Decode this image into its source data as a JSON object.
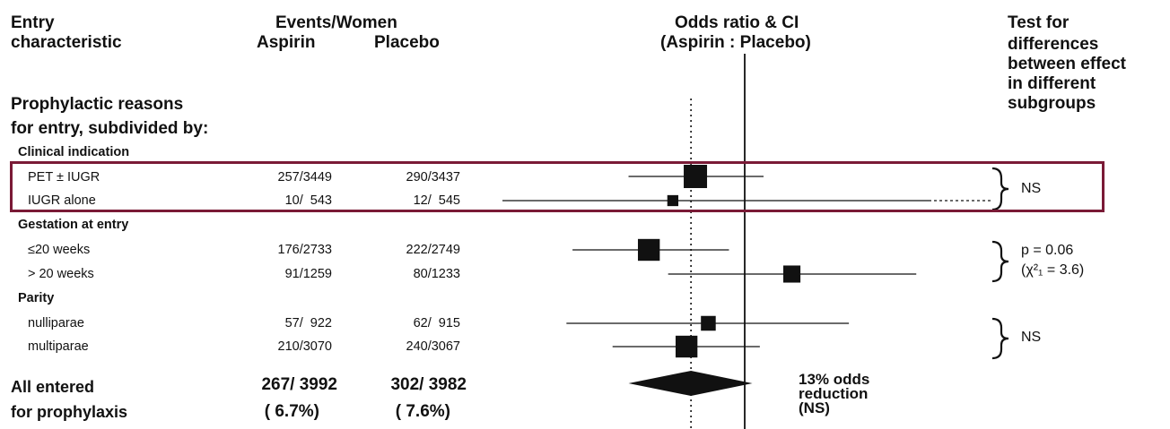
{
  "header": {
    "entry_line1": "Entry",
    "entry_line2": "characteristic",
    "events_women": "Events/Women",
    "aspirin": "Aspirin",
    "placebo": "Placebo",
    "or_line1": "Odds ratio & CI",
    "or_line2": "(Aspirin : Placebo)",
    "test_lines": [
      "Test for",
      "differences",
      "between effect",
      "in different",
      "subgroups"
    ]
  },
  "section": {
    "line1": "Prophylactic reasons",
    "line2": "for entry, subdivided by:"
  },
  "groups": {
    "clinical": "Clinical indication",
    "gestation": "Gestation at entry",
    "parity": "Parity"
  },
  "rows": [
    {
      "label": "PET ± IUGR",
      "aspirin": "257/3449",
      "placebo": "290/3437"
    },
    {
      "label": "IUGR alone",
      "aspirin": "10/  543",
      "placebo": "12/  545"
    },
    {
      "label": "≤20 weeks",
      "aspirin": "176/2733",
      "placebo": "222/2749"
    },
    {
      "label": "> 20 weeks",
      "aspirin": "91/1259",
      "placebo": "80/1233"
    },
    {
      "label": "nulliparae",
      "aspirin": "57/  922",
      "placebo": "62/  915"
    },
    {
      "label": "multiparae",
      "aspirin": "210/3070",
      "placebo": "240/3067"
    }
  ],
  "total": {
    "line1": "All entered",
    "line2": "for prophylaxis",
    "aspirin": "267/ 3992",
    "aspirin_pct": "( 6.7%)",
    "placebo": "302/ 3982",
    "placebo_pct": "( 7.6%)",
    "note_line1": "13% odds",
    "note_line2": "reduction",
    "note_line3": "(NS)"
  },
  "tests": {
    "clinical": "NS",
    "gestation_line1": "p = 0.06",
    "gestation_line2": "(χ²₁ = 3.6)",
    "parity": "NS"
  },
  "chart_data": {
    "type": "forest",
    "reference_line": 1.0,
    "pooled_line": 0.87,
    "scale": "log",
    "grid": false,
    "rows": [
      {
        "label": "PET ± IUGR",
        "or": 0.88,
        "lower": 0.74,
        "upper": 1.05,
        "weight": 1.0
      },
      {
        "label": "IUGR alone",
        "or": 0.83,
        "lower": 0.36,
        "upper": 1.95,
        "weight": 0.12,
        "upper_dotted": true
      },
      {
        "label": "≤20 weeks",
        "or": 0.78,
        "lower": 0.64,
        "upper": 0.96,
        "weight": 0.85
      },
      {
        "label": "> 20 weeks",
        "or": 1.13,
        "lower": 0.82,
        "upper": 1.56,
        "weight": 0.45
      },
      {
        "label": "nulliparae",
        "or": 0.91,
        "lower": 0.63,
        "upper": 1.31,
        "weight": 0.3
      },
      {
        "label": "multiparae",
        "or": 0.86,
        "lower": 0.71,
        "upper": 1.04,
        "weight": 0.85
      }
    ],
    "overall": {
      "label": "All entered for prophylaxis",
      "or": 0.87,
      "lower": 0.74,
      "upper": 1.02
    }
  }
}
